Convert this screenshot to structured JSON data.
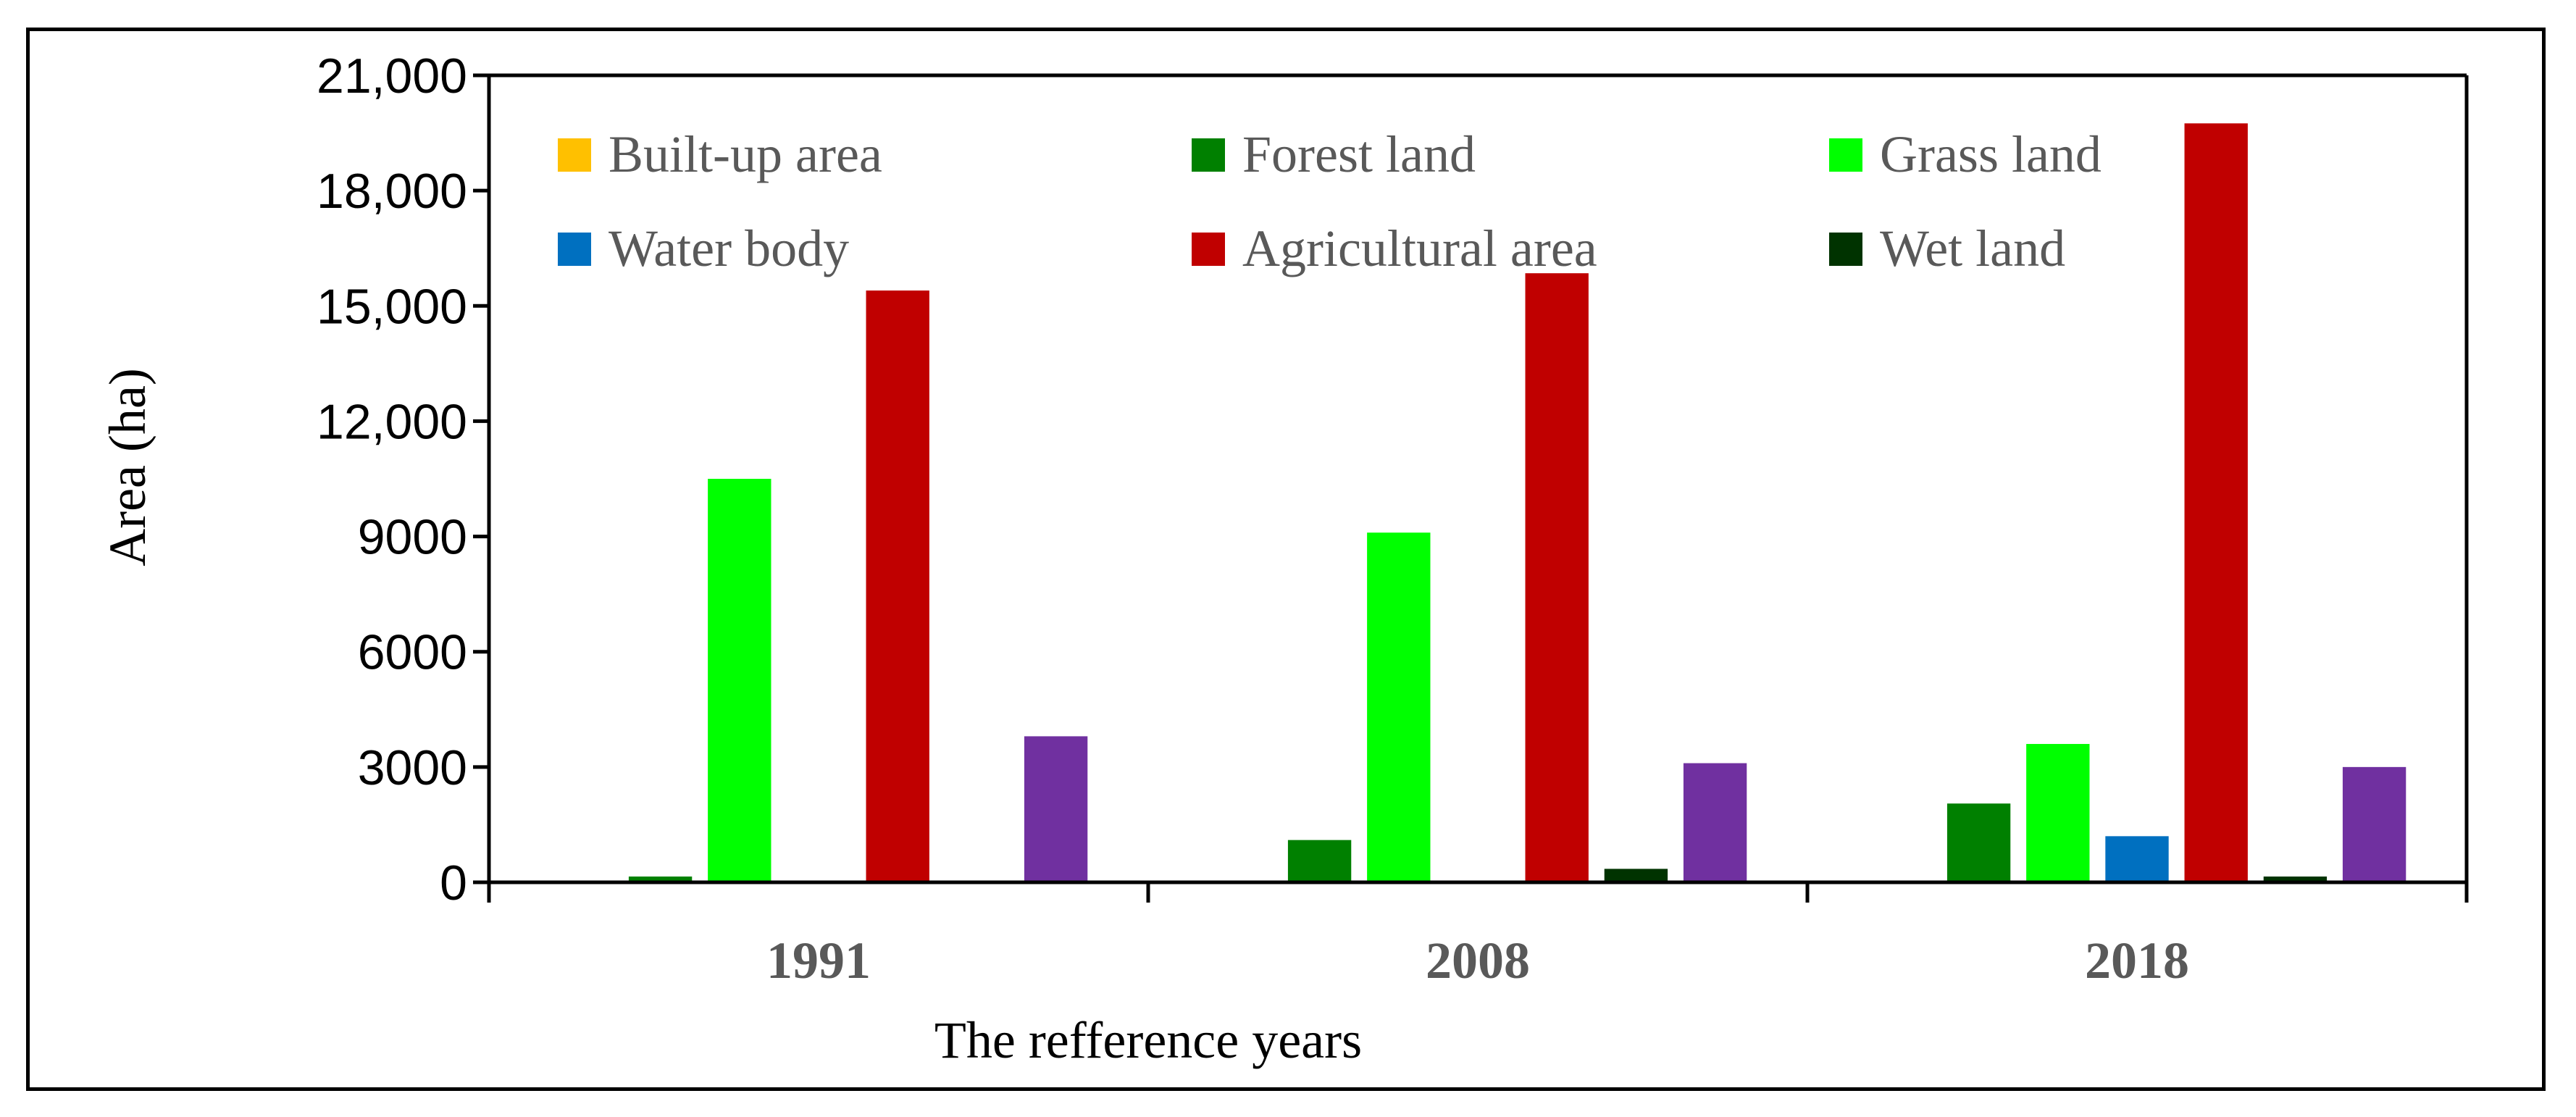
{
  "chart_data": {
    "type": "bar",
    "title": "",
    "xlabel": "The refference years",
    "ylabel": "Area (ha)",
    "ylim": [
      0,
      21000
    ],
    "yticks": [
      0,
      3000,
      6000,
      9000,
      12000,
      15000,
      18000,
      21000
    ],
    "ytick_labels": [
      "0",
      "3000",
      "6000",
      "9000",
      "12,000",
      "15,000",
      "18,000",
      "21,000"
    ],
    "categories": [
      "1991",
      "2008",
      "2018"
    ],
    "grid": false,
    "legend_position": "top",
    "series": [
      {
        "name": "Built-up area",
        "color": "#FFC000",
        "values": [
          0,
          0,
          0
        ]
      },
      {
        "name": "Forest land",
        "color": "#008000",
        "values": [
          150,
          1100,
          2050
        ]
      },
      {
        "name": "Grass land",
        "color": "#00FF00",
        "values": [
          10500,
          9100,
          3600
        ]
      },
      {
        "name": "Water body",
        "color": "#0070C0",
        "values": [
          0,
          0,
          1200
        ]
      },
      {
        "name": "Agricultural area",
        "color": "#C00000",
        "values": [
          15400,
          15850,
          19750
        ]
      },
      {
        "name": "Wet land",
        "color": "#003300",
        "values": [
          0,
          350,
          150
        ]
      },
      {
        "name": "",
        "color": "#7030A0",
        "values": [
          3800,
          3100,
          3000
        ]
      }
    ]
  }
}
